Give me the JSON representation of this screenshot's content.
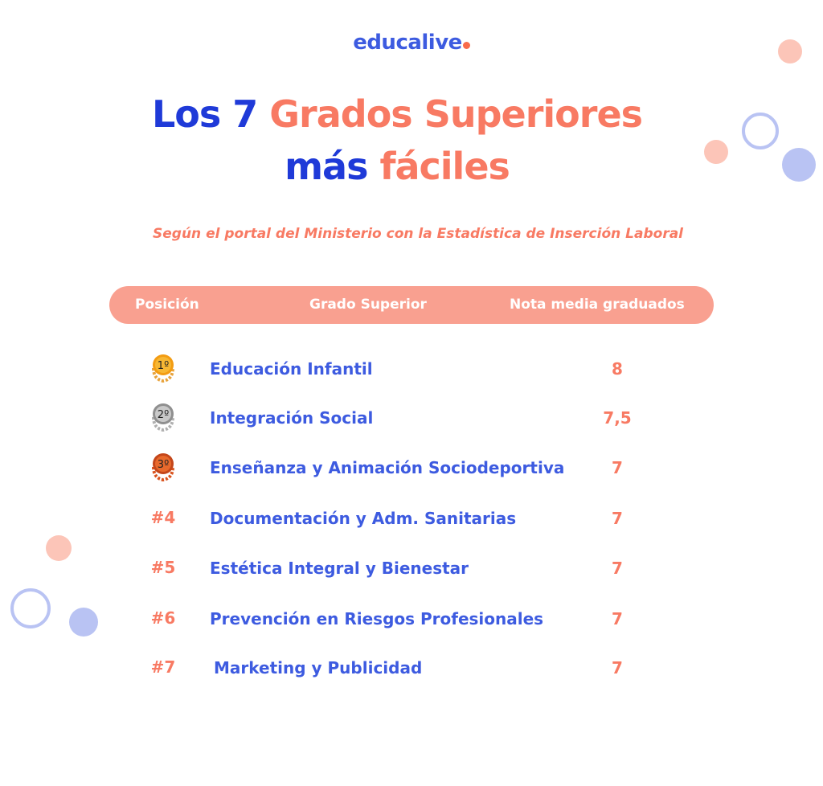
{
  "brand": {
    "name": "educalive",
    "accent": "#f86a4a",
    "color": "#3d5be0"
  },
  "title": {
    "line1_blue": "Los 7",
    "line1_coral": "Grados Superiores",
    "line2_blue": "más",
    "line2_coral": "fáciles"
  },
  "subtitle": "Según el portal del Ministerio con la Estadística de Inserción Laboral",
  "table": {
    "headers": [
      "Posición",
      "Grado Superior",
      "Nota media graduados"
    ],
    "rows": [
      {
        "position": "1º",
        "medal": "gold-medal",
        "grade": "Educación Infantil",
        "score": "8"
      },
      {
        "position": "2º",
        "medal": "silver-medal",
        "grade": "Integración Social",
        "score": "7,5"
      },
      {
        "position": "3º",
        "medal": "bronze-medal",
        "grade": "Enseñanza y Animación Sociodeportiva",
        "score": "7"
      },
      {
        "position": "#4",
        "grade": "Documentación y Adm. Sanitarias",
        "score": "7"
      },
      {
        "position": "#5",
        "grade": "Estética Integral y Bienestar",
        "score": "7"
      },
      {
        "position": "#6",
        "grade": "Prevención en Riesgos Profesionales",
        "score": "7"
      },
      {
        "position": "#7",
        "grade": "Marketing y Publicidad",
        "score": "7"
      }
    ]
  },
  "colors": {
    "blue": "#3d5be0",
    "coral": "#f87a63",
    "header": "#f9a090",
    "gold": "#f5a623",
    "silver": "#9a9a9a",
    "bronze": "#d9531e"
  }
}
